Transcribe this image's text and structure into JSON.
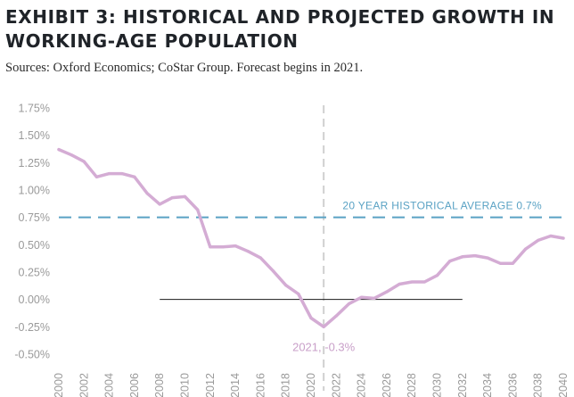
{
  "title": "EXHIBIT 3: HISTORICAL AND PROJECTED GROWTH IN WORKING-AGE POPULATION",
  "subtitle": "Sources: Oxford Economics; CoStar Group. Forecast begins in 2021.",
  "chart_data": {
    "type": "line",
    "title": "EXHIBIT 3: HISTORICAL AND PROJECTED GROWTH IN WORKING-AGE POPULATION",
    "xlabel": "",
    "ylabel": "",
    "xlim": [
      2000,
      2040
    ],
    "ylim": [
      -0.5,
      1.75
    ],
    "x_ticks": [
      "2000",
      "2002",
      "2004",
      "2006",
      "2008",
      "2010",
      "2012",
      "2014",
      "2016",
      "2018",
      "2020",
      "2022",
      "2024",
      "2026",
      "2028",
      "2030",
      "2032",
      "2034",
      "2036",
      "2038",
      "2040"
    ],
    "y_ticks": [
      "1.75%",
      "1.50%",
      "1.25%",
      "1.00%",
      "0.75%",
      "0.50%",
      "0.25%",
      "0.00%",
      "-0.25%",
      "-0.50%"
    ],
    "series": [
      {
        "color": "#d4acd4",
        "x": [
          2000,
          2001,
          2002,
          2003,
          2004,
          2005,
          2006,
          2007,
          2008,
          2009,
          2010,
          2011,
          2012,
          2013,
          2014,
          2015,
          2016,
          2017,
          2018,
          2019,
          2020,
          2021,
          2022,
          2023,
          2024,
          2025,
          2026,
          2027,
          2028,
          2029,
          2030,
          2031,
          2032,
          2033,
          2034,
          2035,
          2036,
          2037,
          2038,
          2039,
          2040
        ],
        "values": [
          1.37,
          1.32,
          1.26,
          1.12,
          1.15,
          1.15,
          1.12,
          0.97,
          0.87,
          0.93,
          0.94,
          0.82,
          0.48,
          0.48,
          0.49,
          0.44,
          0.38,
          0.26,
          0.13,
          0.05,
          -0.17,
          -0.25,
          -0.15,
          -0.04,
          0.02,
          0.01,
          0.07,
          0.14,
          0.16,
          0.16,
          0.22,
          0.35,
          0.39,
          0.4,
          0.38,
          0.33,
          0.33,
          0.46,
          0.54,
          0.58,
          0.56
        ]
      }
    ],
    "reference_lines": [
      {
        "label": "20 YEAR HISTORICAL AVERAGE 0.7%",
        "y": 0.75,
        "style": "dashed",
        "color": "#5aa2c4"
      }
    ],
    "forecast_marker": {
      "x": 2021,
      "style": "dashed",
      "color": "#d0d0d0"
    },
    "zero_line": {
      "y": 0,
      "x_start": 2008,
      "x_end": 2032,
      "color": "#1a1a1a"
    },
    "annotations": [
      {
        "text": "2021, -0.3%",
        "x": 2021,
        "y": -0.25,
        "color": "#c9a0c9"
      }
    ],
    "grid": false,
    "legend": "none"
  }
}
